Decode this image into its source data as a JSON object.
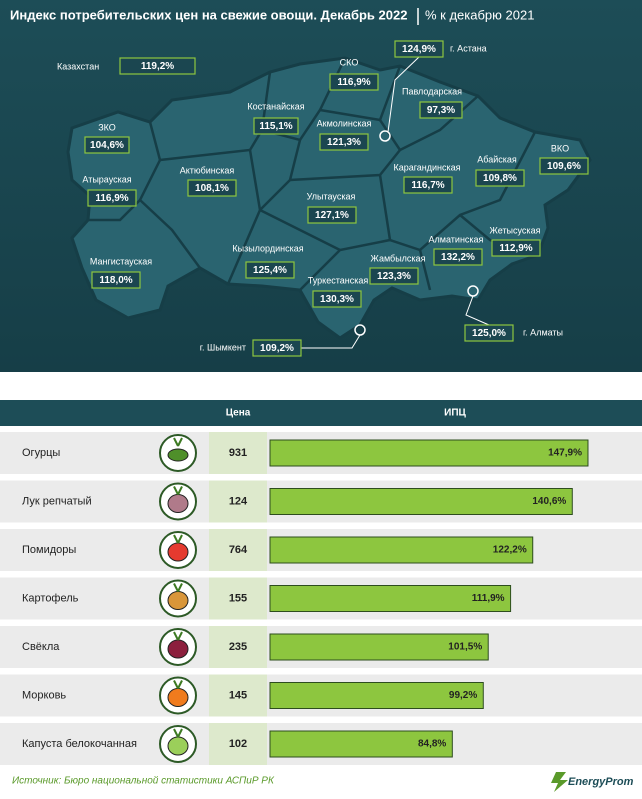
{
  "header": {
    "title": "Индекс потребительских цен на свежие овощи. Декабрь 2022",
    "subtitle": "% к декабрю 2021"
  },
  "map": {
    "regions": [
      {
        "name": "Казахстан",
        "value": "119,2%"
      },
      {
        "name": "г. Астана",
        "value": "124,9%"
      },
      {
        "name": "СКО",
        "value": "116,9%"
      },
      {
        "name": "Павлодарская",
        "value": "97,3%"
      },
      {
        "name": "Костанайская",
        "value": "115,1%"
      },
      {
        "name": "Акмолинская",
        "value": "121,3%"
      },
      {
        "name": "ЗКО",
        "value": "104,6%"
      },
      {
        "name": "ВКО",
        "value": "109,6%"
      },
      {
        "name": "Абайская",
        "value": "109,8%"
      },
      {
        "name": "Актюбинская",
        "value": "108,1%"
      },
      {
        "name": "Карагандинская",
        "value": "116,7%"
      },
      {
        "name": "Атырауская",
        "value": "116,9%"
      },
      {
        "name": "Улытауская",
        "value": "127,1%"
      },
      {
        "name": "Жетысуская",
        "value": "112,9%"
      },
      {
        "name": "Алматинская",
        "value": "132,2%"
      },
      {
        "name": "Кызылординская",
        "value": "125,4%"
      },
      {
        "name": "Мангистауская",
        "value": "118,0%"
      },
      {
        "name": "Жамбылская",
        "value": "123,3%"
      },
      {
        "name": "Туркестанская",
        "value": "130,3%"
      },
      {
        "name": "г. Алматы",
        "value": "125,0%"
      },
      {
        "name": "г. Шымкент",
        "value": "109,2%"
      }
    ]
  },
  "chart_data": {
    "type": "bar",
    "orientation": "horizontal",
    "columns": [
      "Цена",
      "ИПЦ"
    ],
    "categories": [
      "Огурцы",
      "Лук репчатый",
      "Помидоры",
      "Картофель",
      "Свёкла",
      "Морковь",
      "Капуста белокочанная"
    ],
    "prices": [
      931,
      124,
      764,
      155,
      235,
      145,
      102
    ],
    "values": [
      147.9,
      140.6,
      122.2,
      111.9,
      101.5,
      99.2,
      84.8
    ],
    "value_labels": [
      "147,9%",
      "140,6%",
      "122,2%",
      "111,9%",
      "101,5%",
      "99,2%",
      "84,8%"
    ],
    "color": "#8dc63f"
  },
  "footer": {
    "source": "Источник: Бюро национальной статистики АСПиР РК",
    "logo": "EnergyProm"
  }
}
